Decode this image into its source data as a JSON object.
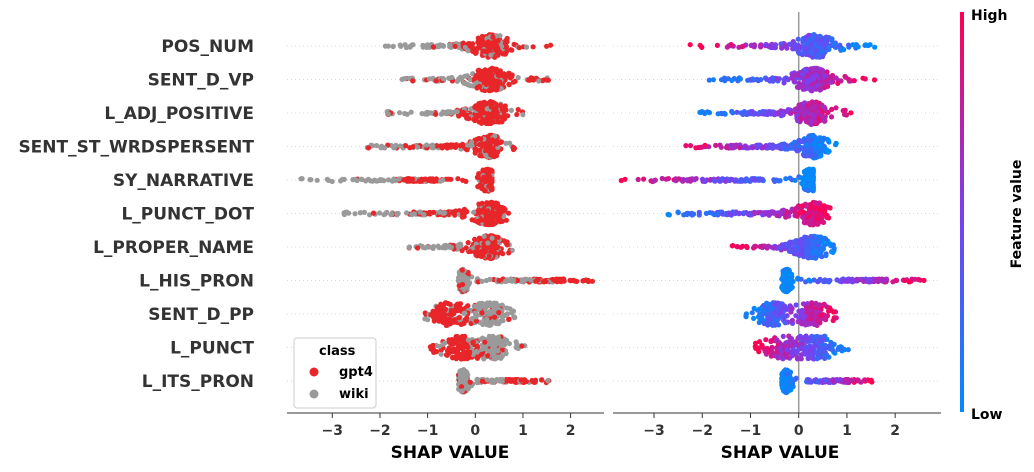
{
  "colors": {
    "gpt4": "#e8262a",
    "wiki": "#9a9a9a",
    "low": "#008bfb",
    "high": "#ff0052",
    "axis": "#333333",
    "grid": "#d9d9d9"
  },
  "legend": {
    "title": "class",
    "items": [
      {
        "label": "gpt4",
        "color": "#e8262a"
      },
      {
        "label": "wiki",
        "color": "#9a9a9a"
      }
    ],
    "placement": "lower-left of left panel"
  },
  "colorbar": {
    "label": "Feature value",
    "high": "High",
    "low": "Low"
  },
  "chart_data": [
    {
      "type": "scatter",
      "subtype": "shap-beeswarm",
      "color_by": "class",
      "xlabel": "SHAP VALUE",
      "xlim": [
        -3.95,
        2.7
      ],
      "xticks": [
        -3,
        -2,
        -1,
        0,
        1,
        2
      ],
      "tick_labels": [
        "−3",
        "−2",
        "−1",
        "0",
        "1",
        "2"
      ],
      "zero_line": false,
      "features": [
        {
          "name": "POS_NUM",
          "range": [
            -2.2,
            1.65
          ],
          "low_side": "wiki",
          "clusters": [
            [
              0.35,
              0.3
            ]
          ]
        },
        {
          "name": "SENT_D_VP",
          "range": [
            -1.85,
            1.65
          ],
          "low_side": "wiki",
          "clusters": [
            [
              0.3,
              0.3
            ]
          ]
        },
        {
          "name": "L_ADJ_POSITIVE",
          "range": [
            -2.0,
            1.2
          ],
          "low_side": "wiki",
          "clusters": [
            [
              0.3,
              0.3
            ]
          ]
        },
        {
          "name": "SENT_ST_WRDSPERSENT",
          "range": [
            -2.35,
            0.85
          ],
          "low_side": "wiki",
          "clusters": [
            [
              0.3,
              0.25
            ]
          ]
        },
        {
          "name": "SY_NARRATIVE",
          "range": [
            -3.7,
            0.35
          ],
          "low_side": "wiki",
          "clusters": [
            [
              0.25,
              0.15
            ]
          ]
        },
        {
          "name": "L_PUNCT_DOT",
          "range": [
            -2.8,
            0.7
          ],
          "low_side": "wiki",
          "clusters": [
            [
              0.3,
              0.3
            ]
          ]
        },
        {
          "name": "L_PROPER_NAME",
          "range": [
            -1.4,
            0.8
          ],
          "low_side": "wiki",
          "clusters": [
            [
              0.3,
              0.3
            ]
          ]
        },
        {
          "name": "L_HIS_PRON",
          "range": [
            -0.35,
            2.6
          ],
          "low_side": "wiki",
          "clusters": [
            [
              -0.25,
              0.1
            ]
          ]
        },
        {
          "name": "SENT_D_PP",
          "range": [
            -1.1,
            0.85
          ],
          "low_side": "gpt4",
          "clusters": [
            [
              -0.55,
              0.3
            ],
            [
              0.35,
              0.3
            ]
          ]
        },
        {
          "name": "L_PUNCT",
          "range": [
            -0.95,
            1.05
          ],
          "low_side": "gpt4",
          "clusters": [
            [
              -0.3,
              0.35
            ],
            [
              0.4,
              0.3
            ]
          ]
        },
        {
          "name": "L_ITS_PRON",
          "range": [
            -0.35,
            1.55
          ],
          "low_side": "wiki",
          "clusters": [
            [
              -0.25,
              0.1
            ]
          ]
        }
      ]
    },
    {
      "type": "scatter",
      "subtype": "shap-beeswarm",
      "color_by": "feature value",
      "xlabel": "SHAP VALUE",
      "xlim": [
        -3.85,
        2.95
      ],
      "xticks": [
        -3,
        -2,
        -1,
        0,
        1,
        2
      ],
      "tick_labels": [
        "−3",
        "−2",
        "−1",
        "0",
        "1",
        "2"
      ],
      "zero_line": true,
      "features": [
        {
          "name": "POS_NUM",
          "range": [
            -2.25,
            1.6
          ],
          "low_is": "right",
          "clusters": [
            [
              0.35,
              0.3
            ]
          ]
        },
        {
          "name": "SENT_D_VP",
          "range": [
            -1.9,
            1.6
          ],
          "low_is": "left",
          "clusters": [
            [
              0.3,
              0.3
            ]
          ]
        },
        {
          "name": "L_ADJ_POSITIVE",
          "range": [
            -2.05,
            1.15
          ],
          "low_is": "left",
          "clusters": [
            [
              0.3,
              0.3
            ]
          ]
        },
        {
          "name": "SENT_ST_WRDSPERSENT",
          "range": [
            -2.35,
            0.8
          ],
          "low_is": "right",
          "clusters": [
            [
              0.3,
              0.25
            ]
          ]
        },
        {
          "name": "SY_NARRATIVE",
          "range": [
            -3.7,
            0.3
          ],
          "low_is": "right",
          "clusters": [
            [
              0.25,
              0.15
            ]
          ]
        },
        {
          "name": "L_PUNCT_DOT",
          "range": [
            -2.8,
            0.65
          ],
          "low_is": "left",
          "clusters": [
            [
              0.3,
              0.3
            ]
          ]
        },
        {
          "name": "L_PROPER_NAME",
          "range": [
            -1.4,
            0.75
          ],
          "low_is": "right",
          "clusters": [
            [
              0.3,
              0.3
            ]
          ]
        },
        {
          "name": "L_HIS_PRON",
          "range": [
            -0.35,
            2.6
          ],
          "low_is": "left",
          "clusters": [
            [
              -0.25,
              0.1
            ]
          ]
        },
        {
          "name": "SENT_D_PP",
          "range": [
            -1.1,
            0.8
          ],
          "low_is": "left",
          "clusters": [
            [
              -0.55,
              0.3
            ],
            [
              0.35,
              0.3
            ]
          ]
        },
        {
          "name": "L_PUNCT",
          "range": [
            -0.95,
            1.05
          ],
          "low_is": "right",
          "clusters": [
            [
              -0.3,
              0.35
            ],
            [
              0.4,
              0.3
            ]
          ]
        },
        {
          "name": "L_ITS_PRON",
          "range": [
            -0.35,
            1.55
          ],
          "low_is": "left",
          "clusters": [
            [
              -0.25,
              0.1
            ]
          ]
        }
      ]
    }
  ]
}
